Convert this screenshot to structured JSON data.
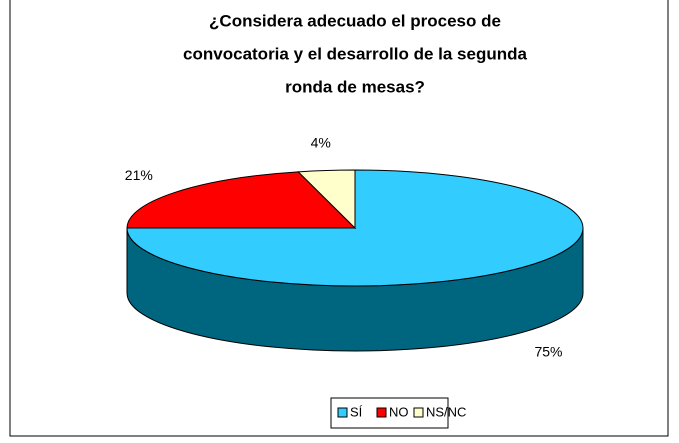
{
  "chart_data": {
    "type": "pie",
    "title": [
      "¿Considera adecuado el proceso de",
      "convocatoria y el desarrollo de la segunda",
      "ronda de mesas?"
    ],
    "categories": [
      "SÍ",
      "NO",
      "NS/NC"
    ],
    "values": [
      75,
      21,
      4
    ],
    "value_labels": [
      "75%",
      "21%",
      "4%"
    ],
    "colors": [
      "#33ccff",
      "#ff0000",
      "#ffffcc"
    ],
    "side_colors": [
      "#006680",
      "#800000",
      "#808066"
    ],
    "legend": "bottom"
  }
}
